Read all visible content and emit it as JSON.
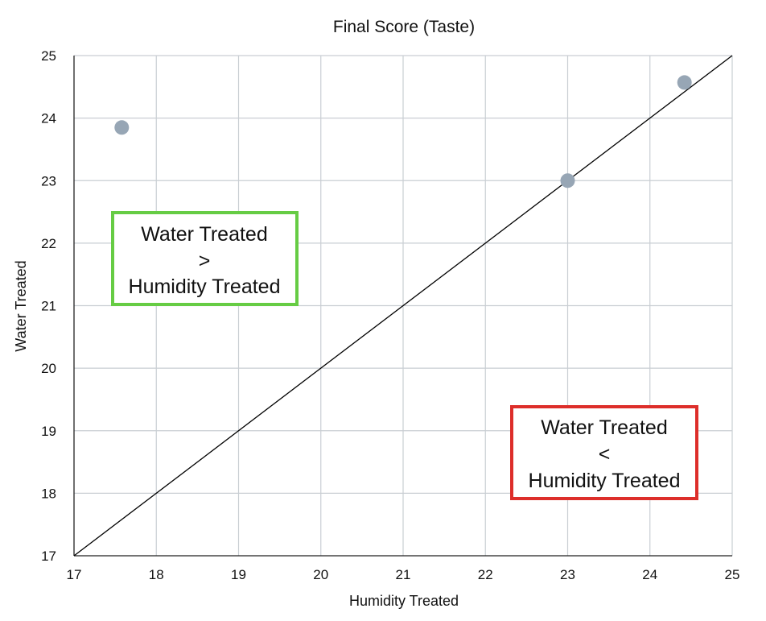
{
  "chart_data": {
    "type": "scatter",
    "title": "Final Score (Taste)",
    "xlabel": "Humidity Treated",
    "ylabel": "Water Treated",
    "xlim": [
      17,
      25
    ],
    "ylim": [
      17,
      25
    ],
    "x_ticks": [
      "17",
      "18",
      "19",
      "20",
      "21",
      "22",
      "23",
      "24",
      "25"
    ],
    "y_ticks": [
      "17",
      "18",
      "19",
      "20",
      "21",
      "22",
      "23",
      "24",
      "25"
    ],
    "grid": true,
    "series": [
      {
        "points": [
          {
            "x": 17.58,
            "y": 23.85
          },
          {
            "x": 23.0,
            "y": 23.0
          },
          {
            "x": 24.42,
            "y": 24.57
          }
        ],
        "color": "#97a6b5"
      }
    ],
    "reference_line": {
      "from": [
        17,
        17
      ],
      "to": [
        25,
        25
      ],
      "color": "#000000"
    },
    "annotations": [
      {
        "lines": [
          "Water Treated",
          ">",
          "Humidity Treated"
        ],
        "border_color": "#66cc44"
      },
      {
        "lines": [
          "Water Treated",
          "<",
          "Humidity Treated"
        ],
        "border_color": "#dd2e2a"
      }
    ]
  }
}
